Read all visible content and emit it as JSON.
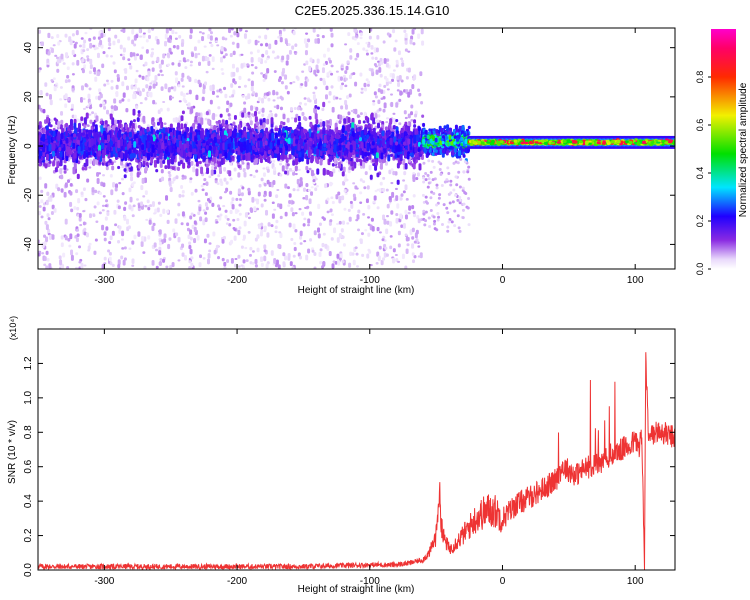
{
  "title": "C2E5.2025.336.15.14.G10",
  "chart_data": [
    {
      "type": "heatmap",
      "xlabel": "Height of straight line (km)",
      "ylabel": "Frequency (Hz)",
      "xlim": [
        -350,
        130
      ],
      "ylim": [
        -50,
        48
      ],
      "x_ticks": [
        -300,
        -200,
        -100,
        0,
        100
      ],
      "x_tick_labels": [
        "-300",
        "-200",
        "-100",
        "0",
        "100"
      ],
      "y_ticks": [
        -40,
        -20,
        0,
        20,
        40
      ],
      "y_tick_labels": [
        "-40",
        "-20",
        "0",
        "20",
        "40"
      ],
      "colorbar": {
        "label": "Normalized spectral amplitude",
        "range": [
          0,
          1
        ],
        "ticks": [
          0,
          0.2,
          0.4,
          0.6,
          0.8
        ],
        "tick_labels": [
          "0.0",
          "0.2",
          "0.4",
          "0.6",
          "0.8"
        ],
        "colormap": "rainbow"
      },
      "regions": [
        {
          "x_range": [
            -350,
            -60
          ],
          "center_freq": 1,
          "core_band": [
            -10,
            10
          ],
          "scatter_band": [
            -50,
            48
          ],
          "amplitude": [
            0.02,
            0.35
          ]
        },
        {
          "x_range": [
            -60,
            -25
          ],
          "center_freq": 2,
          "core_band": [
            -4,
            6
          ],
          "amplitude": [
            0.2,
            0.55
          ]
        },
        {
          "x_range": [
            -25,
            130
          ],
          "center_freq": 1.5,
          "core_band": [
            -3,
            4
          ],
          "amplitude": [
            0.4,
            0.95
          ]
        }
      ]
    },
    {
      "type": "line",
      "xlabel": "Height of straight line (km)",
      "ylabel": "SNR (10 * v/v)",
      "y_exponent": "(x10⁴)",
      "xlim": [
        -350,
        130
      ],
      "ylim": [
        0,
        1.4
      ],
      "x_ticks": [
        -300,
        -200,
        -100,
        0,
        100
      ],
      "x_tick_labels": [
        "-300",
        "-200",
        "-100",
        "0",
        "100"
      ],
      "y_ticks": [
        0,
        0.2,
        0.4,
        0.6,
        0.8,
        1.0,
        1.2
      ],
      "y_tick_labels": [
        "0.0",
        "0.2",
        "0.4",
        "0.6",
        "0.8",
        "1.0",
        "1.2"
      ],
      "series": [
        {
          "color": "#ee3333",
          "x": [
            -350,
            -300,
            -250,
            -200,
            -150,
            -100,
            -80,
            -70,
            -60,
            -55,
            -50,
            -48,
            -45,
            -40,
            -35,
            -30,
            -25,
            -20,
            -15,
            -10,
            -5,
            0,
            10,
            20,
            30,
            40,
            45,
            50,
            55,
            60,
            65,
            70,
            75,
            80,
            85,
            90,
            95,
            100,
            103,
            105,
            107,
            108,
            110,
            115,
            120,
            125,
            130
          ],
          "y": [
            0.02,
            0.02,
            0.02,
            0.02,
            0.02,
            0.03,
            0.03,
            0.04,
            0.06,
            0.1,
            0.2,
            0.46,
            0.2,
            0.12,
            0.16,
            0.2,
            0.25,
            0.3,
            0.33,
            0.35,
            0.34,
            0.3,
            0.38,
            0.42,
            0.47,
            0.52,
            0.6,
            0.58,
            0.55,
            0.58,
            0.6,
            0.62,
            0.62,
            0.66,
            0.68,
            0.7,
            0.72,
            0.75,
            0.72,
            0.78,
            0.02,
            1.25,
            0.76,
            0.8,
            0.8,
            0.78,
            0.77
          ]
        }
      ]
    }
  ]
}
